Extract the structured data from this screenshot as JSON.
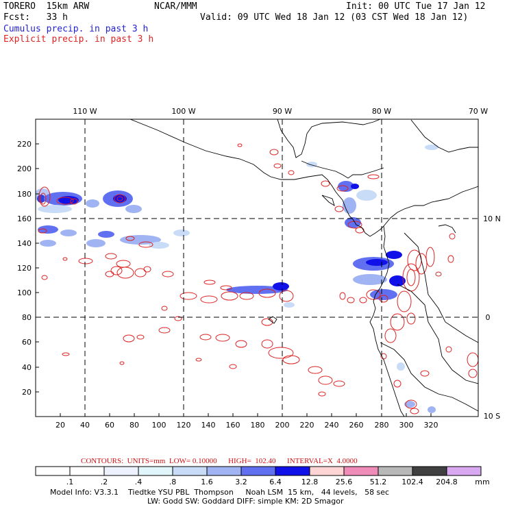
{
  "header": {
    "model": "TORERO  15km ARW",
    "org": "NCAR/MMM",
    "init": "Init: 00 UTC Tue 17 Jan 12",
    "fcst": "Fcst:   33 h",
    "valid": "Valid: 09 UTC Wed 18 Jan 12 (03 CST Wed 18 Jan 12)",
    "legend_cumulus": "Cumulus precip. in past 3 h",
    "legend_explicit": "Explicit precip. in past 3 h"
  },
  "map": {
    "top_lon_labels": [
      "110 W",
      "100 W",
      "90 W",
      "80 W",
      "70 W"
    ],
    "right_lat_labels": [
      "10 N",
      "0",
      "10 S"
    ],
    "x_ticks": [
      "20",
      "40",
      "60",
      "80",
      "100",
      "120",
      "140",
      "160",
      "180",
      "200",
      "220",
      "240",
      "260",
      "280",
      "300",
      "320"
    ],
    "y_ticks": [
      "20",
      "40",
      "60",
      "80",
      "100",
      "120",
      "140",
      "160",
      "180",
      "200",
      "220"
    ]
  },
  "contours_line": "CONTOURS:  UNITS=mm  LOW= 0.10000      HIGH=  102.40      INTERVAL=X  4.0000",
  "colorbar": {
    "labels": [
      ".1",
      ".2",
      ".4",
      ".8",
      "1.6",
      "3.2",
      "6.4",
      "12.8",
      "25.6",
      "51.2",
      "102.4",
      "204.8"
    ],
    "unit": "mm",
    "colors": [
      "#ffffff",
      "#ffffff",
      "#eef2ff",
      "#e0f6fa",
      "#c8dcf8",
      "#a0b4f4",
      "#6070f0",
      "#1010e8",
      "#ffd4d4",
      "#f08cb8",
      "#b8b8b8",
      "#404040",
      "#d8a8f0"
    ]
  },
  "model_info": {
    "line1": "Model Info: V3.3.1    Tiedtke YSU PBL  Thompson     Noah LSM  15 km,   44 levels,   58 sec",
    "line2": "LW: Godd SW: Goddard DIFF: simple KM: 2D Smagor"
  }
}
